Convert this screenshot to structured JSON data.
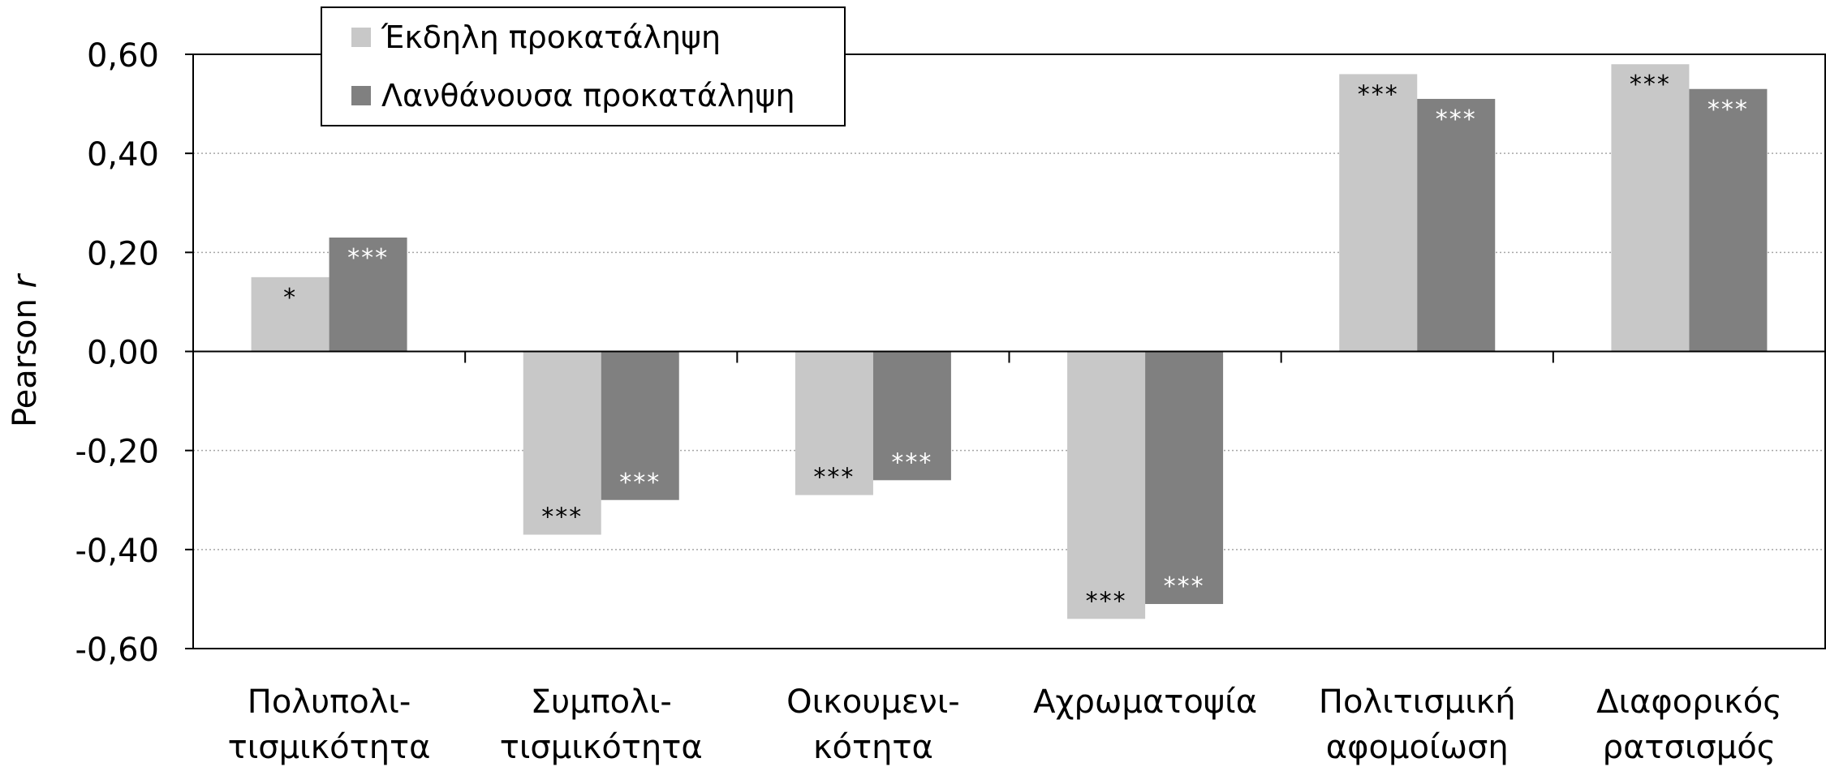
{
  "chart_data": {
    "type": "bar",
    "title": "",
    "xlabel": "",
    "ylabel": "Pearson",
    "ylabel_italic": "r",
    "ylim": [
      -0.6,
      0.6
    ],
    "yticks": [
      0.6,
      0.4,
      0.2,
      0.0,
      -0.2,
      -0.4,
      -0.6
    ],
    "ytick_labels": [
      "0,60",
      "0,40",
      "0,20",
      "0,00",
      "-0,20",
      "-0,40",
      "-0,60"
    ],
    "grid": "horizontal dotted",
    "legend_position": "top-left",
    "categories": [
      [
        "Πολυπολι-",
        "τισμικότητα"
      ],
      [
        "Συμπολι-",
        "τισμικότητα"
      ],
      [
        "Οικουμενι-",
        "κότητα"
      ],
      [
        "Αχρωματοψία"
      ],
      [
        "Πολιτισμική",
        "αφομοίωση"
      ],
      [
        "Διαφορικός",
        "ρατσισμός"
      ]
    ],
    "series": [
      {
        "name": "Έκδηλη προκατάληψη",
        "color": "#c8c8c8",
        "label_color": "#000000",
        "values": [
          0.15,
          -0.37,
          -0.29,
          -0.54,
          0.56,
          0.58
        ],
        "significance": [
          "*",
          "***",
          "***",
          "***",
          "***",
          "***"
        ]
      },
      {
        "name": "Λανθάνουσα προκατάληψη",
        "color": "#808080",
        "label_color": "#ffffff",
        "values": [
          0.23,
          -0.3,
          -0.26,
          -0.51,
          0.51,
          0.53
        ],
        "significance": [
          "***",
          "***",
          "***",
          "***",
          "***",
          "***"
        ]
      }
    ]
  }
}
